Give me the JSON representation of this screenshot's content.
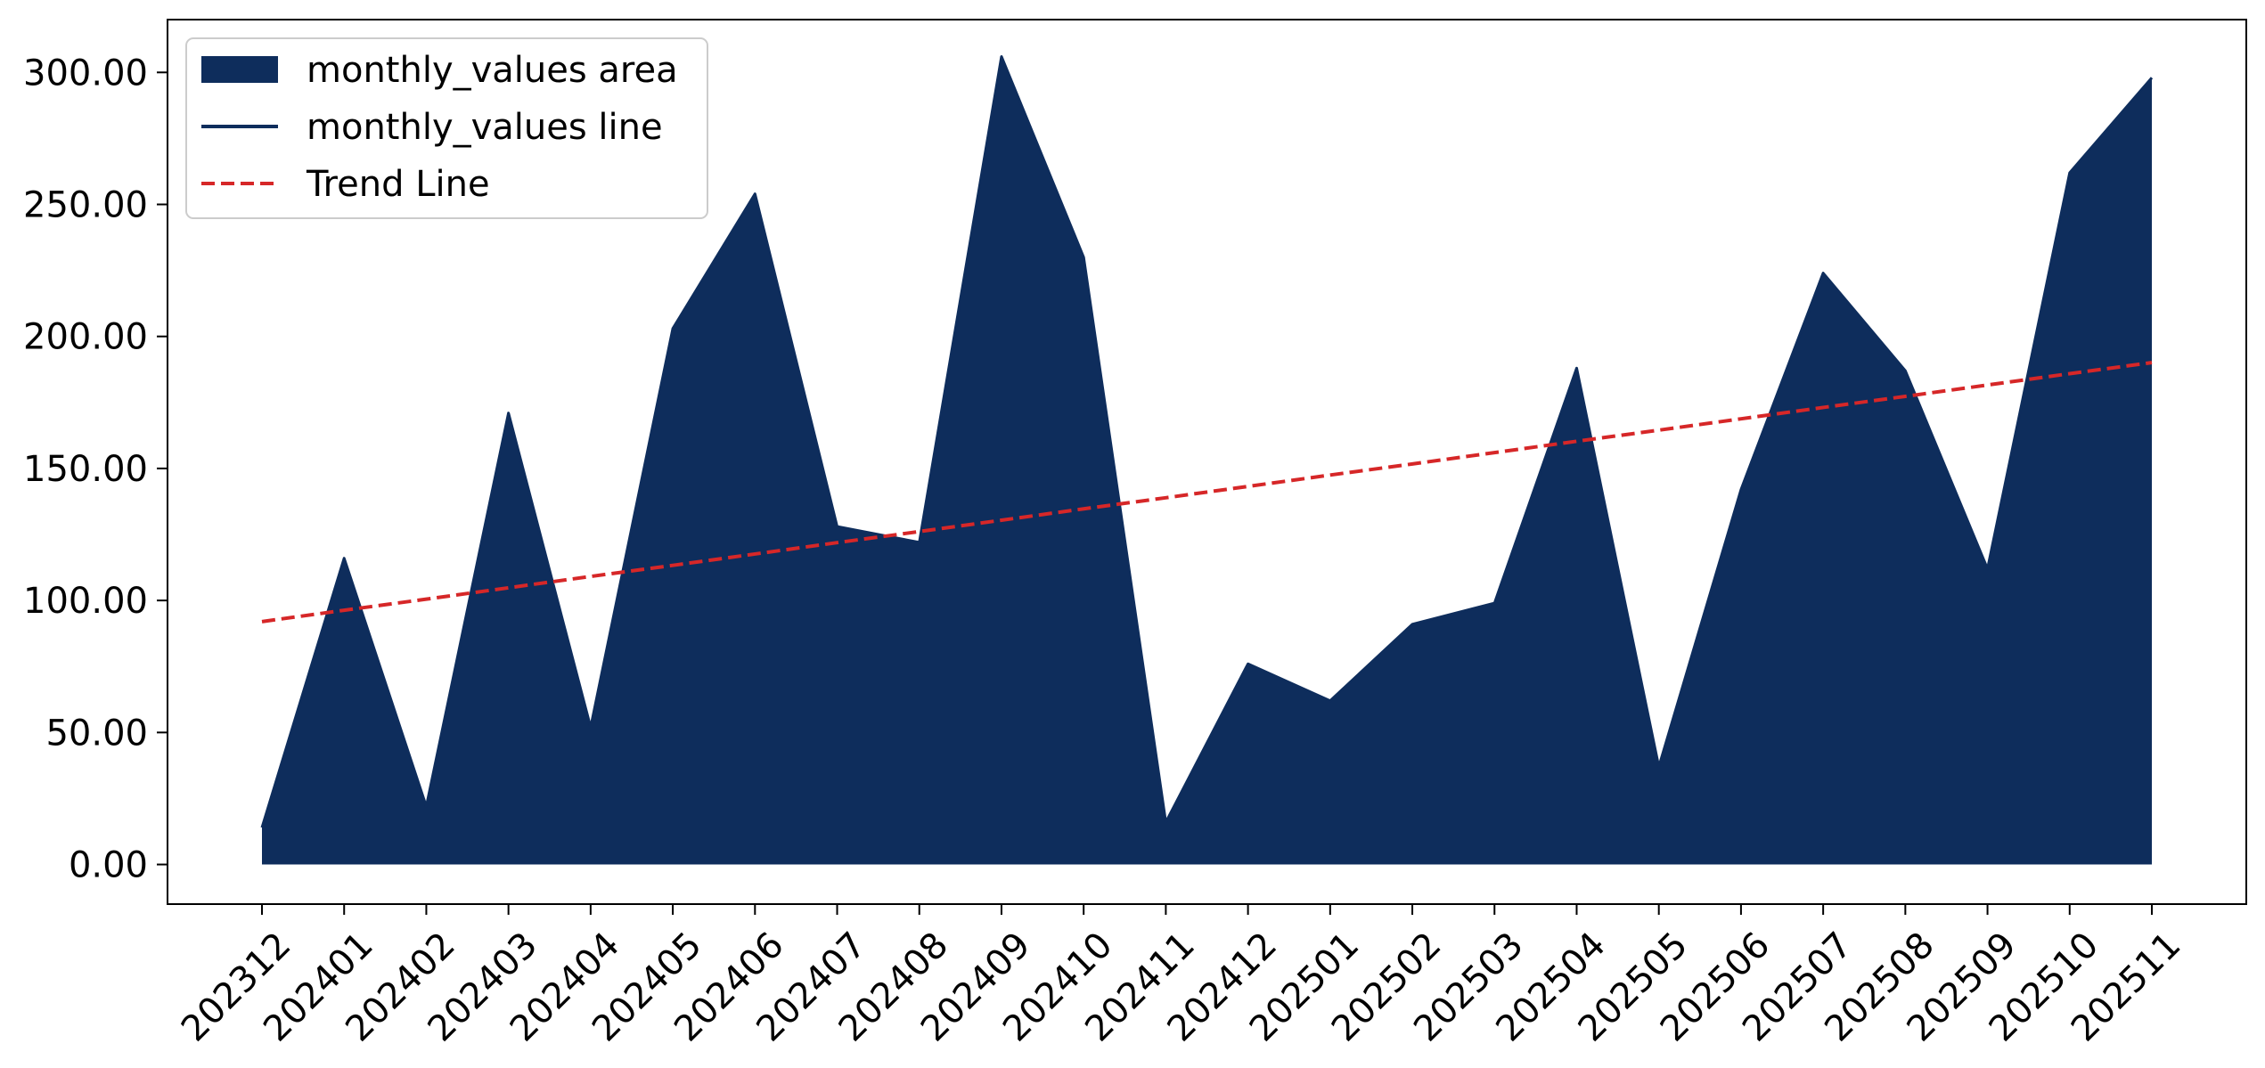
{
  "chart_data": {
    "type": "area",
    "categories": [
      "202312",
      "202401",
      "202402",
      "202403",
      "202404",
      "202405",
      "202406",
      "202407",
      "202408",
      "202409",
      "202410",
      "202411",
      "202412",
      "202501",
      "202502",
      "202503",
      "202504",
      "202505",
      "202506",
      "202507",
      "202508",
      "202509",
      "202510",
      "202511"
    ],
    "series": [
      {
        "name": "monthly_values area",
        "kind": "area",
        "color": "#0e2d5c",
        "values": [
          14,
          116,
          22,
          171,
          52,
          203,
          254,
          128,
          122,
          306,
          230,
          16,
          76,
          62,
          91,
          99,
          188,
          37,
          142,
          224,
          187,
          112,
          262,
          298
        ]
      },
      {
        "name": "monthly_values line",
        "kind": "line",
        "color": "#0e2d5c",
        "values": [
          14,
          116,
          22,
          171,
          52,
          203,
          254,
          128,
          122,
          306,
          230,
          16,
          76,
          62,
          91,
          99,
          188,
          37,
          142,
          224,
          187,
          112,
          262,
          298
        ]
      },
      {
        "name": "Trend Line",
        "kind": "line",
        "style": "dashed",
        "color": "#d62728",
        "values": [
          92,
          96.3,
          100.5,
          104.8,
          109.1,
          113.3,
          117.6,
          121.9,
          126.1,
          130.4,
          134.7,
          138.9,
          143.2,
          147.5,
          151.7,
          156,
          160.3,
          164.5,
          168.8,
          173.1,
          177.3,
          181.6,
          185.9,
          190.1
        ]
      }
    ],
    "yticks": [
      "0.00",
      "50.00",
      "100.00",
      "150.00",
      "200.00",
      "250.00",
      "300.00"
    ],
    "ylim": [
      -15,
      320
    ],
    "xlabel": "",
    "ylabel": "",
    "title": "",
    "grid": false,
    "legend_position": "top-left"
  }
}
